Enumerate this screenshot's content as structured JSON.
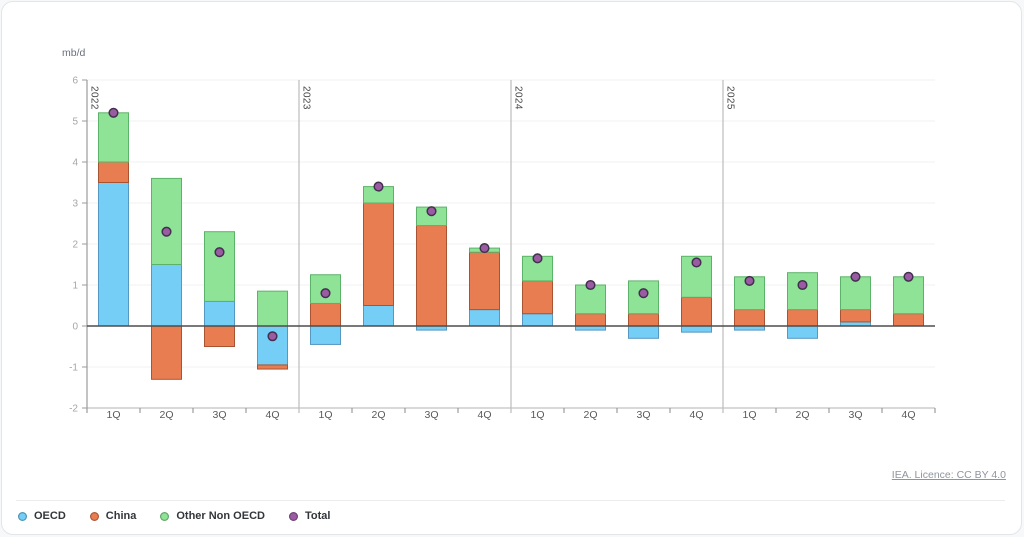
{
  "chart_data": {
    "type": "bar",
    "variant": "stacked-quarterly-bars-with-total-markers",
    "title": "",
    "ylabel": "mb/d",
    "ylim": [
      -2,
      6
    ],
    "yticks": [
      6,
      5,
      4,
      3,
      2,
      1,
      0,
      -1,
      -2
    ],
    "years": [
      "2022",
      "2023",
      "2024",
      "2025"
    ],
    "quarters": [
      "1Q",
      "2Q",
      "3Q",
      "4Q"
    ],
    "grid": "horizontal",
    "legend_position": "bottom-left",
    "series": [
      {
        "name": "OECD",
        "role": "bar",
        "color": "#74cef5",
        "border": "#5598c2",
        "values": [
          3.5,
          1.5,
          0.6,
          -0.95,
          -0.45,
          0.5,
          -0.1,
          0.4,
          0.3,
          -0.1,
          -0.3,
          -0.15,
          -0.1,
          -0.3,
          0.1,
          0
        ]
      },
      {
        "name": "China",
        "role": "bar",
        "color": "#e97d52",
        "border": "#a85432",
        "values": [
          0.5,
          -1.3,
          -0.5,
          -0.1,
          0.55,
          2.5,
          2.45,
          1.4,
          0.8,
          0.3,
          0.3,
          0.7,
          0.4,
          0.4,
          0.3,
          0.3
        ]
      },
      {
        "name": "Other Non OECD",
        "role": "bar",
        "color": "#8ee396",
        "border": "#5cb268",
        "values": [
          1.2,
          2.1,
          1.7,
          0.85,
          0.7,
          0.4,
          0.45,
          0.1,
          0.6,
          0.7,
          0.8,
          1.0,
          0.8,
          0.9,
          0.8,
          0.9
        ]
      },
      {
        "name": "Total",
        "role": "point",
        "color": "#9b5ba3",
        "border": "#41304d",
        "values": [
          5.2,
          2.3,
          1.8,
          -0.25,
          0.8,
          3.4,
          2.8,
          1.9,
          1.65,
          1.0,
          0.8,
          1.55,
          1.1,
          1.0,
          1.2,
          1.2
        ]
      }
    ]
  },
  "footer": {
    "licence_text": "IEA. Licence: CC BY 4.0"
  },
  "style": {
    "zero_line": "#4d4d4d",
    "axis_line": "#9b9b9b",
    "year_separator": "#bcbcbc",
    "gridline": "#f0f0f0",
    "bottom_axis": "#b3b3b3",
    "tick_mark": "#8a8a8a",
    "ytick_label": "#a6a6a6",
    "quarter_label": "#5a5a5a",
    "year_label": "#474747"
  }
}
